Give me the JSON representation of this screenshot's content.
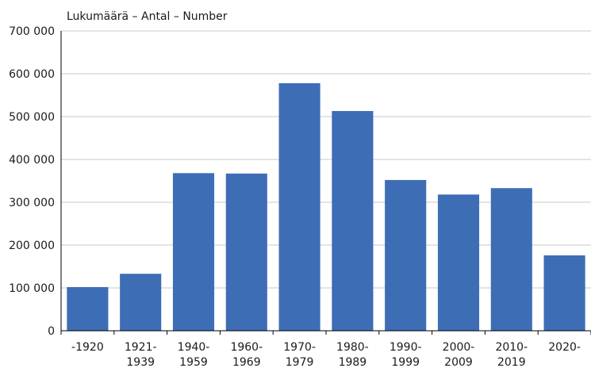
{
  "chart_data": {
    "type": "bar",
    "title": "",
    "ylabel": "Lukumäärä – Antal – Number",
    "xlabel": "",
    "categories": [
      [
        "-1920"
      ],
      [
        "1921-",
        "1939"
      ],
      [
        "1940-",
        "1959"
      ],
      [
        "1960-",
        "1969"
      ],
      [
        "1970-",
        "1979"
      ],
      [
        "1980-",
        "1989"
      ],
      [
        "1990-",
        "1999"
      ],
      [
        "2000-",
        "2009"
      ],
      [
        "2010-",
        "2019"
      ],
      [
        "2020-"
      ]
    ],
    "values": [
      102000,
      133000,
      368000,
      367000,
      578000,
      513000,
      352000,
      318000,
      333000,
      176000
    ],
    "ylim": [
      0,
      700000
    ],
    "yticks": [
      0,
      100000,
      200000,
      300000,
      400000,
      500000,
      600000,
      700000
    ],
    "ytick_labels": [
      "0",
      "100 000",
      "200 000",
      "300 000",
      "400 000",
      "500 000",
      "600 000",
      "700 000"
    ],
    "grid": true,
    "bar_color": "#3d6db5",
    "grid_color": "#c8c8c8",
    "axis_color": "#000000"
  }
}
